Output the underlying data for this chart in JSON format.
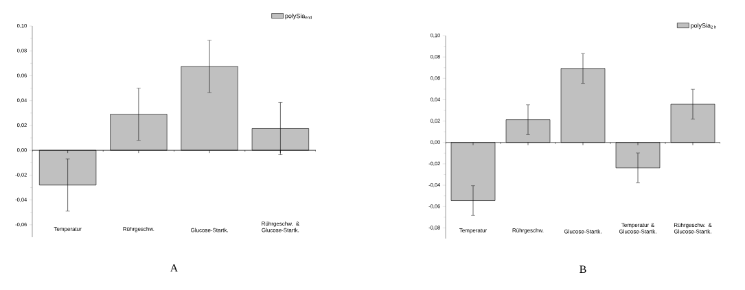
{
  "chart_data": [
    {
      "type": "bar",
      "title": "A",
      "categories": [
        "Temperatur",
        "Rührgeschw.",
        "Glucose-Startk.",
        "Rührgeschw. & Glucose-Startk."
      ],
      "series": [
        {
          "name": "polySia$_{end}$",
          "color": "#c0c0c0",
          "values": [
            -0.028,
            0.029,
            0.0675,
            0.0175
          ],
          "errors": [
            0.021,
            0.021,
            0.021,
            0.021
          ]
        }
      ],
      "ylim": [
        -0.07,
        0.1
      ],
      "yticks": [
        {
          "value": -0.06,
          "label": "-0,06"
        },
        {
          "value": -0.04,
          "label": "-0,04"
        },
        {
          "value": -0.02,
          "label": "-0,02"
        },
        {
          "value": 0,
          "label": "0,00"
        },
        {
          "value": 0.02,
          "label": "0,02"
        },
        {
          "value": 0.04,
          "label": "0,04"
        },
        {
          "value": 0.06,
          "label": "0,06"
        },
        {
          "value": 0.08,
          "label": "0,08"
        },
        {
          "value": 0.1,
          "label": "0,10"
        }
      ],
      "legend": "top right"
    },
    {
      "type": "bar",
      "title": "B",
      "categories": [
        "Temperatur",
        "Rührgeschw.",
        "Glucose-Startk.",
        "Temperatur & Glucose-Startk.",
        "Rührgeschw. & Glucose-Startk."
      ],
      "series": [
        {
          "name": "polySia$_{2 h}$",
          "color": "#c0c0c0",
          "values": [
            -0.0544,
            0.0213,
            0.0693,
            -0.0238,
            0.0358
          ],
          "errors": [
            0.014,
            0.014,
            0.014,
            0.014,
            0.014
          ]
        }
      ],
      "ylim": [
        -0.09,
        0.1
      ],
      "yticks": [
        {
          "value": -0.08,
          "label": "-0,08"
        },
        {
          "value": -0.06,
          "label": "-0,06"
        },
        {
          "value": -0.04,
          "label": "-0,04"
        },
        {
          "value": -0.02,
          "label": "-0,02"
        },
        {
          "value": 0,
          "label": "0,00"
        },
        {
          "value": 0.02,
          "label": "0,02"
        },
        {
          "value": 0.04,
          "label": "0,04"
        },
        {
          "value": 0.06,
          "label": "0,06"
        },
        {
          "value": 0.08,
          "label": "0,08"
        },
        {
          "value": 0.1,
          "label": "0,10"
        }
      ],
      "legend": "top right"
    }
  ]
}
